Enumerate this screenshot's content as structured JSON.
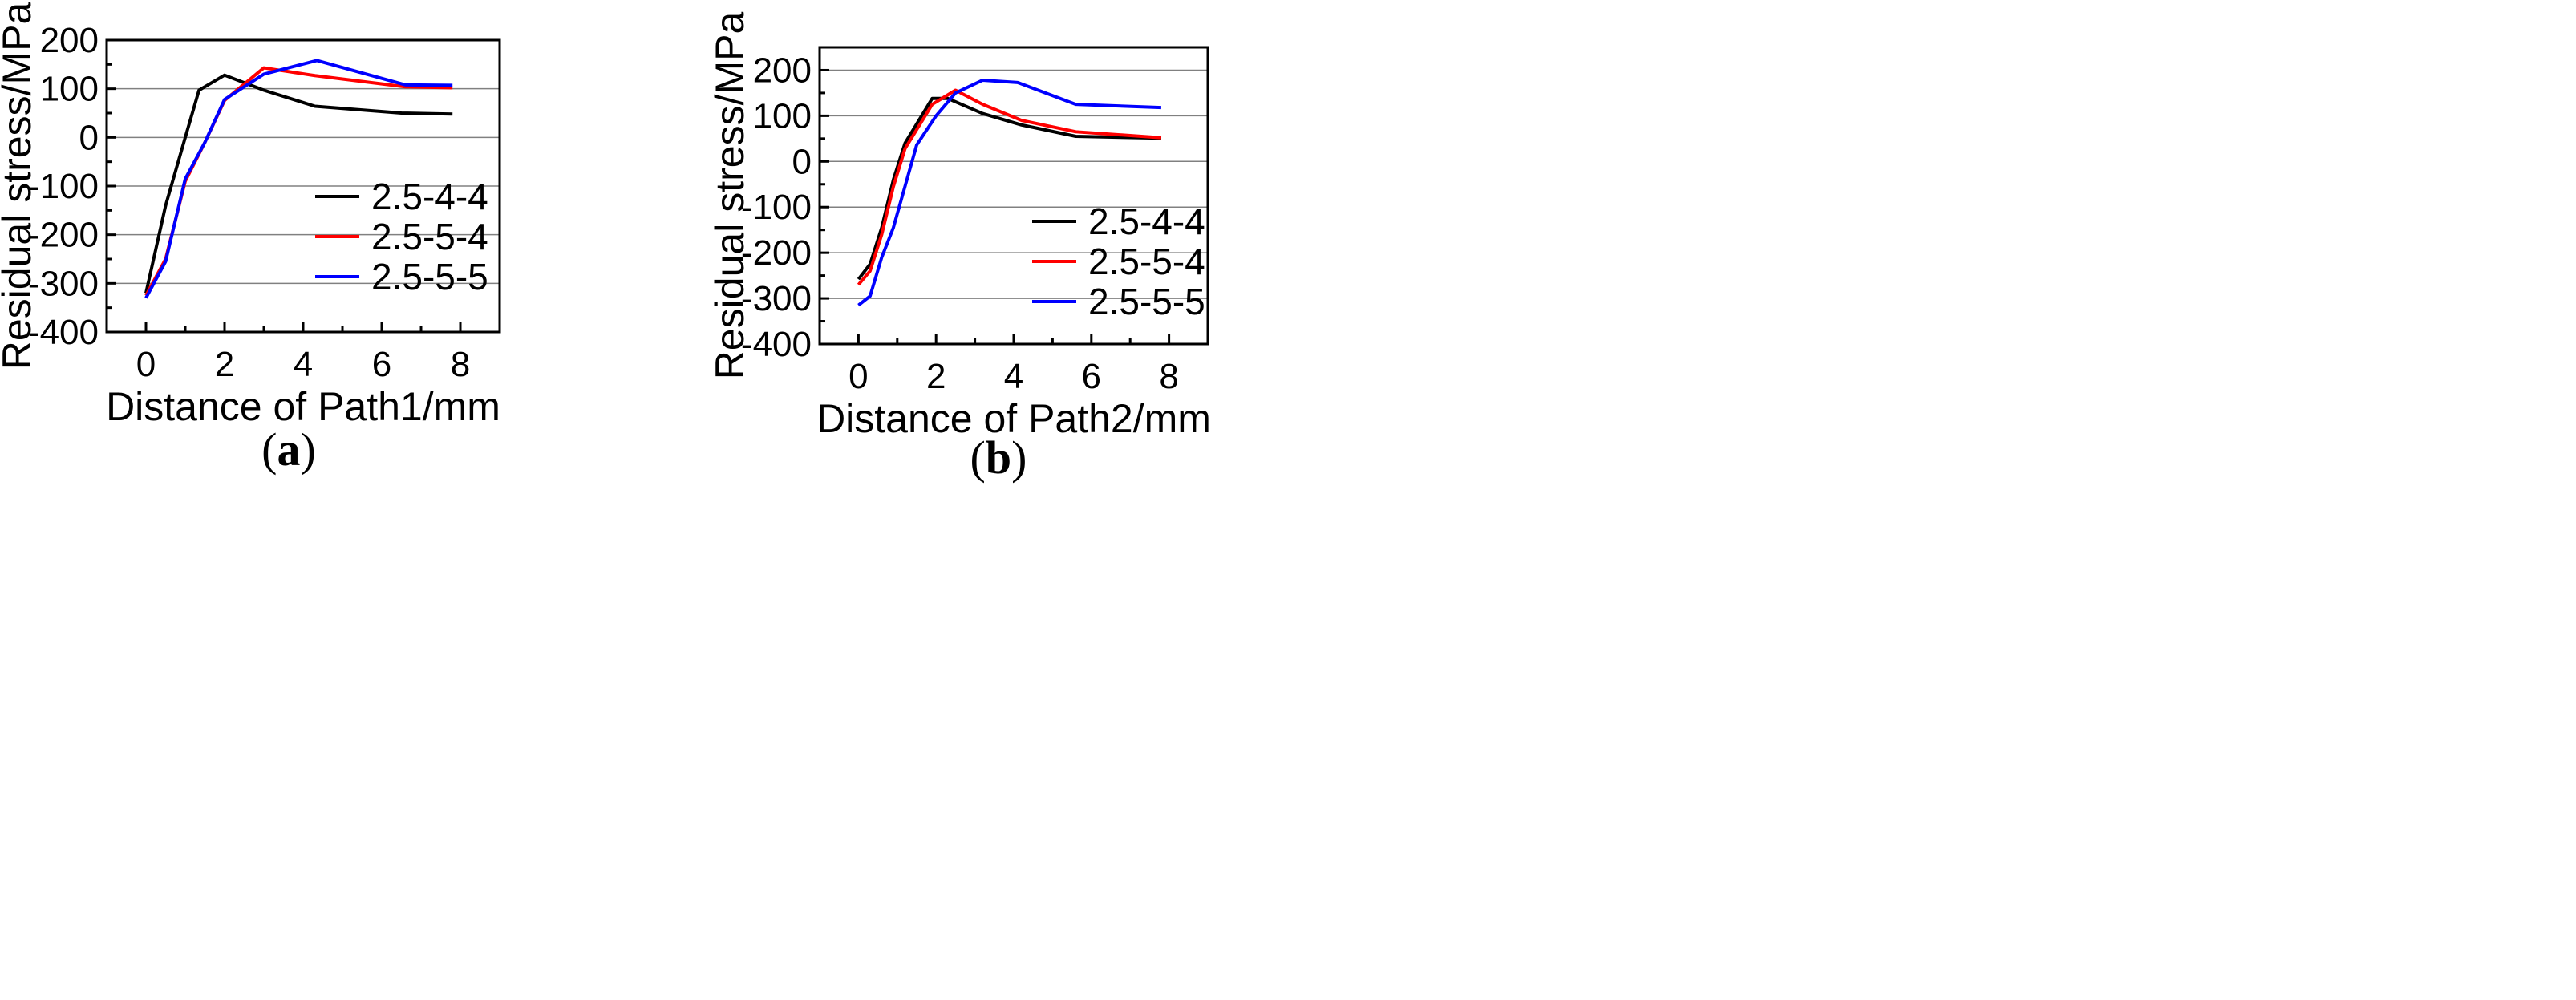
{
  "chart_data": [
    {
      "type": "line",
      "panel": "a",
      "caption": {
        "open": "(",
        "letter": "a",
        "close": ")"
      },
      "title": "",
      "xlabel": "Distance of Path1/mm",
      "ylabel": "Residual stress/MPa",
      "xlim": [
        -1,
        9
      ],
      "ylim": [
        -400,
        200
      ],
      "xticks": [
        0,
        2,
        4,
        6,
        8
      ],
      "xtick_labels": [
        "0",
        "2",
        "4",
        "6",
        "8"
      ],
      "yticks": [
        -400,
        -300,
        -200,
        -100,
        0,
        100,
        200
      ],
      "ytick_labels": [
        "-400",
        "-300",
        "-200",
        "-100",
        "0",
        "100",
        "200"
      ],
      "grid": "horizontal",
      "legend_position": "center-right",
      "series": [
        {
          "name": "2.5-4-4",
          "color": "#000000",
          "x": [
            0,
            0.5,
            1.0,
            1.35,
            2.0,
            3.0,
            4.3,
            6.5,
            7.8
          ],
          "y": [
            -320,
            -140,
            0,
            97,
            128,
            97,
            64,
            50,
            48
          ]
        },
        {
          "name": "2.5-5-4",
          "color": "#ff0000",
          "x": [
            0,
            0.5,
            1.0,
            1.5,
            2.0,
            3.0,
            4.3,
            6.6,
            7.8
          ],
          "y": [
            -325,
            -250,
            -90,
            -10,
            76,
            143,
            127,
            104,
            102
          ]
        },
        {
          "name": "2.5-5-5",
          "color": "#0000ff",
          "x": [
            0,
            0.5,
            1.0,
            1.5,
            2.0,
            3.0,
            4.35,
            6.6,
            7.8
          ],
          "y": [
            -330,
            -255,
            -85,
            -10,
            78,
            130,
            158,
            108,
            107
          ]
        }
      ]
    },
    {
      "type": "line",
      "panel": "b",
      "caption": {
        "open": "(",
        "letter": "b",
        "close": ")"
      },
      "title": "",
      "xlabel": "Distance of Path2/mm",
      "ylabel": "Residual stress/MPa",
      "xlim": [
        -1,
        9
      ],
      "ylim": [
        -400,
        250
      ],
      "xticks": [
        0,
        2,
        4,
        6,
        8
      ],
      "xtick_labels": [
        "0",
        "2",
        "4",
        "6",
        "8"
      ],
      "yticks": [
        -400,
        -300,
        -200,
        -100,
        0,
        100,
        200
      ],
      "ytick_labels": [
        "-400",
        "-300",
        "-200",
        "-100",
        "0",
        "100",
        "200"
      ],
      "grid": "horizontal",
      "legend_position": "lower-right",
      "series": [
        {
          "name": "2.5-4-4",
          "color": "#000000",
          "x": [
            0,
            0.3,
            0.6,
            0.9,
            1.2,
            1.9,
            2.3,
            3.2,
            4.2,
            5.6,
            7.8
          ],
          "y": [
            -258,
            -225,
            -145,
            -40,
            40,
            138,
            138,
            105,
            80,
            55,
            51
          ]
        },
        {
          "name": "2.5-5-4",
          "color": "#ff0000",
          "x": [
            0,
            0.3,
            0.6,
            0.9,
            1.2,
            1.9,
            2.5,
            3.2,
            4.2,
            5.6,
            7.8
          ],
          "y": [
            -270,
            -240,
            -160,
            -55,
            28,
            125,
            156,
            125,
            90,
            65,
            52
          ]
        },
        {
          "name": "2.5-5-5",
          "color": "#0000ff",
          "x": [
            0,
            0.3,
            0.6,
            0.9,
            1.5,
            2.0,
            2.5,
            3.2,
            4.1,
            5.6,
            7.8
          ],
          "y": [
            -315,
            -295,
            -210,
            -145,
            36,
            100,
            150,
            178,
            173,
            125,
            118
          ]
        }
      ]
    }
  ]
}
